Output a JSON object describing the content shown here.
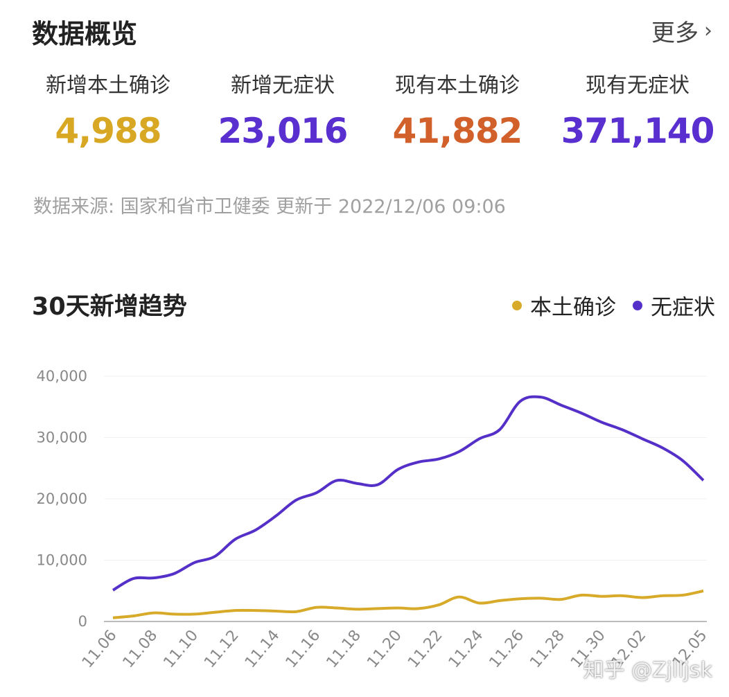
{
  "header": {
    "title": "数据概览",
    "more_label": "更多",
    "more_icon": "chevron-right-icon"
  },
  "stats": [
    {
      "label": "新增本土确诊",
      "value": "4,988",
      "color": "#d8a824"
    },
    {
      "label": "新增无症状",
      "value": "23,016",
      "color": "#5a2fd0"
    },
    {
      "label": "现有本土确诊",
      "value": "41,882",
      "color": "#d2602a"
    },
    {
      "label": "现有无症状",
      "value": "371,140",
      "color": "#5a2fd0"
    }
  ],
  "source": "数据来源: 国家和省市卫健委 更新于 2022/12/06 09:06",
  "watermark": "知乎 @Zjlljsk",
  "chart_data": {
    "type": "line",
    "title": "30天新增趋势",
    "xlabel": "",
    "ylabel": "",
    "ylim": [
      0,
      40000
    ],
    "yticks": [
      "0",
      "10,000",
      "20,000",
      "30,000",
      "40,000"
    ],
    "grid": true,
    "legend": "top-right",
    "x": [
      "11.06",
      "11.07",
      "11.08",
      "11.09",
      "11.10",
      "11.11",
      "11.12",
      "11.13",
      "11.14",
      "11.15",
      "11.16",
      "11.17",
      "11.18",
      "11.19",
      "11.20",
      "11.21",
      "11.22",
      "11.23",
      "11.24",
      "11.25",
      "11.26",
      "11.27",
      "11.28",
      "11.29",
      "11.30",
      "12.01",
      "12.02",
      "12.03",
      "12.04",
      "12.05"
    ],
    "xtick_labels": [
      "11.06",
      "11.08",
      "11.10",
      "11.12",
      "11.14",
      "11.16",
      "11.18",
      "11.20",
      "11.22",
      "11.24",
      "11.26",
      "11.28",
      "11.30",
      "12.02",
      "12.05"
    ],
    "series": [
      {
        "name": "本土确诊",
        "color": "#d8aa2a",
        "values": [
          600,
          900,
          1400,
          1200,
          1200,
          1500,
          1800,
          1800,
          1700,
          1600,
          2300,
          2200,
          2000,
          2100,
          2200,
          2100,
          2700,
          4000,
          3000,
          3400,
          3700,
          3800,
          3600,
          4300,
          4100,
          4200,
          3900,
          4200,
          4300,
          4988
        ]
      },
      {
        "name": "无症状",
        "color": "#5530c8",
        "values": [
          5100,
          7000,
          7100,
          7800,
          9600,
          10600,
          13400,
          14900,
          17200,
          19800,
          21000,
          23000,
          22500,
          22300,
          24800,
          26000,
          26500,
          27700,
          29800,
          31300,
          35900,
          36600,
          35300,
          34000,
          32500,
          31300,
          29800,
          28300,
          26200,
          23016
        ]
      }
    ]
  }
}
